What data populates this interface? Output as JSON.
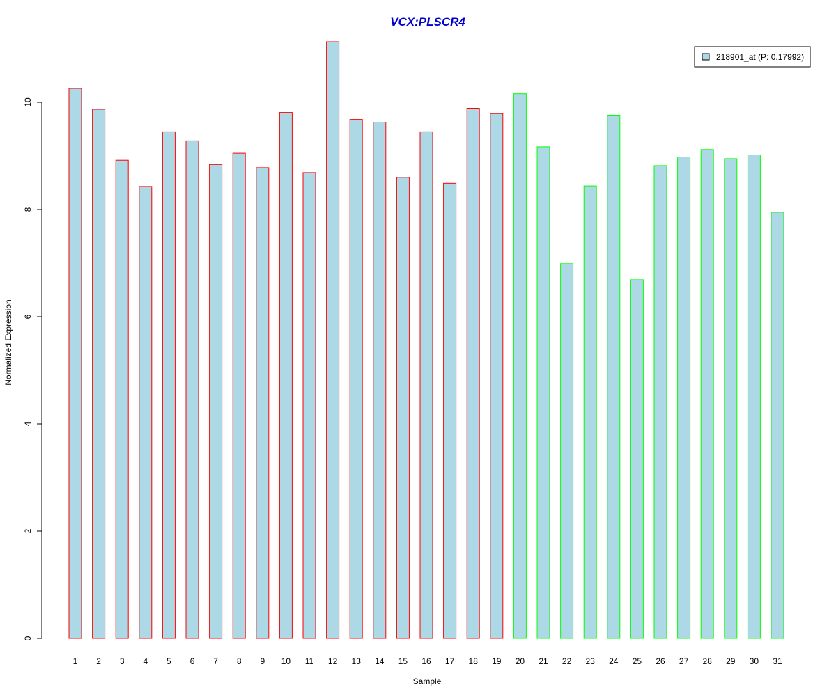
{
  "chart_data": {
    "type": "bar",
    "title": "VCX:PLSCR4",
    "xlabel": "Sample",
    "ylabel": "Normalized Expression",
    "ylim": [
      0,
      11.25
    ],
    "yticks": [
      0,
      2,
      4,
      6,
      8,
      10
    ],
    "categories": [
      "1",
      "2",
      "3",
      "4",
      "5",
      "6",
      "7",
      "8",
      "9",
      "10",
      "11",
      "12",
      "13",
      "14",
      "15",
      "16",
      "17",
      "18",
      "19",
      "20",
      "21",
      "22",
      "23",
      "24",
      "25",
      "26",
      "27",
      "28",
      "29",
      "30",
      "31"
    ],
    "series": [
      {
        "name": "218901_at (P: 0.17992)",
        "values": [
          10.26,
          9.87,
          8.92,
          8.43,
          9.45,
          9.28,
          8.84,
          9.05,
          8.78,
          9.81,
          8.69,
          11.13,
          9.68,
          9.63,
          8.6,
          9.45,
          8.49,
          9.89,
          9.79,
          10.16,
          9.17,
          6.99,
          8.44,
          9.76,
          6.69,
          8.82,
          8.98,
          9.12,
          8.95,
          9.02,
          7.95
        ],
        "fill": "#add8e6"
      }
    ],
    "group_borders": [
      "#ff0000",
      "#ff0000",
      "#ff0000",
      "#ff0000",
      "#ff0000",
      "#ff0000",
      "#ff0000",
      "#ff0000",
      "#ff0000",
      "#ff0000",
      "#ff0000",
      "#ff0000",
      "#ff0000",
      "#ff0000",
      "#ff0000",
      "#ff0000",
      "#ff0000",
      "#ff0000",
      "#ff0000",
      "#00ff00",
      "#00ff00",
      "#00ff00",
      "#00ff00",
      "#00ff00",
      "#00ff00",
      "#00ff00",
      "#00ff00",
      "#00ff00",
      "#00ff00",
      "#00ff00",
      "#00ff00"
    ],
    "title_color": "#0000cc",
    "legend_placement": "top-right",
    "grid": false
  }
}
